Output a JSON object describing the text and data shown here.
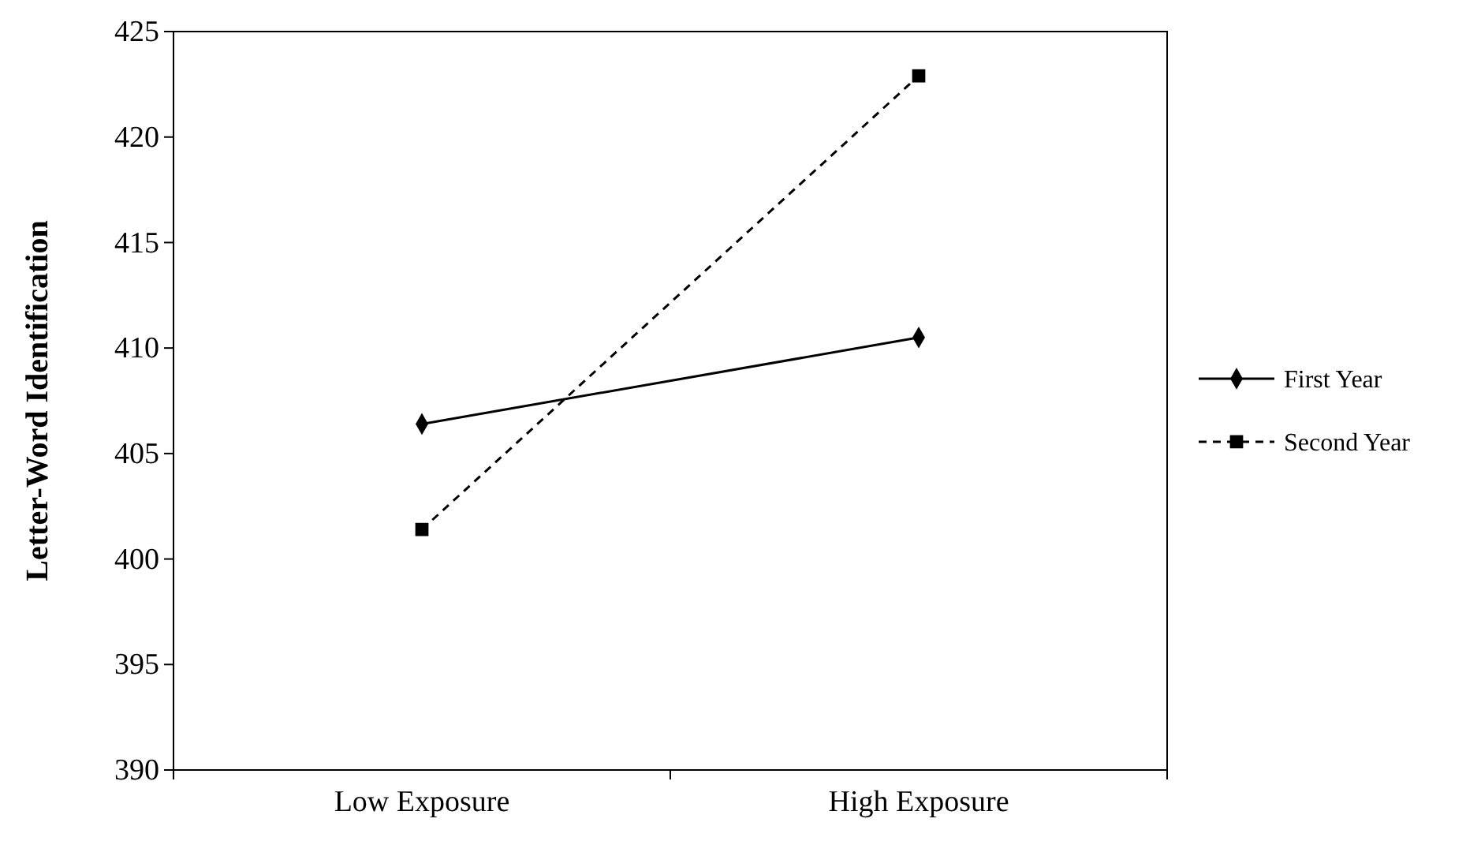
{
  "chart_data": {
    "type": "line",
    "ylabel": "Letter-Word Identification",
    "categories": [
      "Low Exposure",
      "High Exposure"
    ],
    "series": [
      {
        "name": "First Year",
        "color": "#000000",
        "values": [
          406.4,
          410.5
        ],
        "marker": "diamond",
        "line_style": "solid"
      },
      {
        "name": "Second Year",
        "color": "#000000",
        "values": [
          401.4,
          422.9
        ],
        "marker": "square",
        "line_style": "dashed"
      }
    ],
    "ylim": [
      390,
      425
    ],
    "yticks": [
      390,
      395,
      400,
      405,
      410,
      415,
      420,
      425
    ],
    "grid": false,
    "legend": "right"
  }
}
